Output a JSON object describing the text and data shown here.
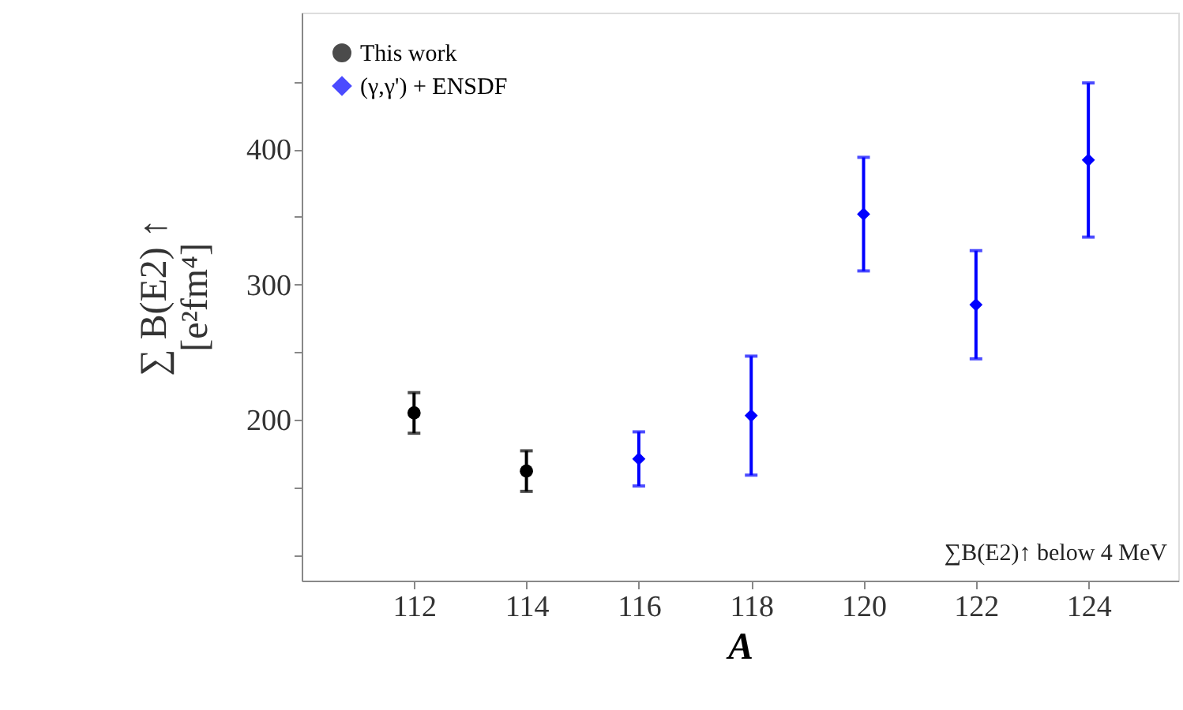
{
  "chart_data": {
    "type": "scatter",
    "xlabel": "A",
    "ylabel": "∑ B(E2) ↑\n[e²fm⁴]",
    "x": [
      112,
      114,
      116,
      118,
      120,
      122,
      124
    ],
    "series": [
      {
        "name": "This work",
        "color": "#000000",
        "marker": "circle",
        "values": [
          205,
          162,
          null,
          null,
          null,
          null,
          null
        ],
        "errors": [
          15,
          15,
          null,
          null,
          null,
          null,
          null
        ]
      },
      {
        "name": "(γ,γ') + ENSDF",
        "color": "#0000ff",
        "marker": "diamond",
        "values": [
          null,
          null,
          171,
          203,
          352,
          285,
          392
        ],
        "errors": [
          null,
          null,
          20,
          44,
          42,
          40,
          57
        ]
      }
    ],
    "xlim": [
      110,
      125.6
    ],
    "xticks": [
      112,
      114,
      116,
      118,
      120,
      122,
      124
    ],
    "ylim": [
      81,
      501
    ],
    "yticks": [
      {
        "value": 100,
        "label": null
      },
      {
        "value": 150,
        "label": null
      },
      200,
      {
        "value": 250,
        "label": null
      },
      300,
      {
        "value": 350,
        "label": null
      },
      400,
      {
        "value": 450,
        "label": null
      }
    ],
    "annotations": [
      "∑B(E2)↑ below 4 MeV"
    ],
    "legend": "top left",
    "grid": false
  }
}
